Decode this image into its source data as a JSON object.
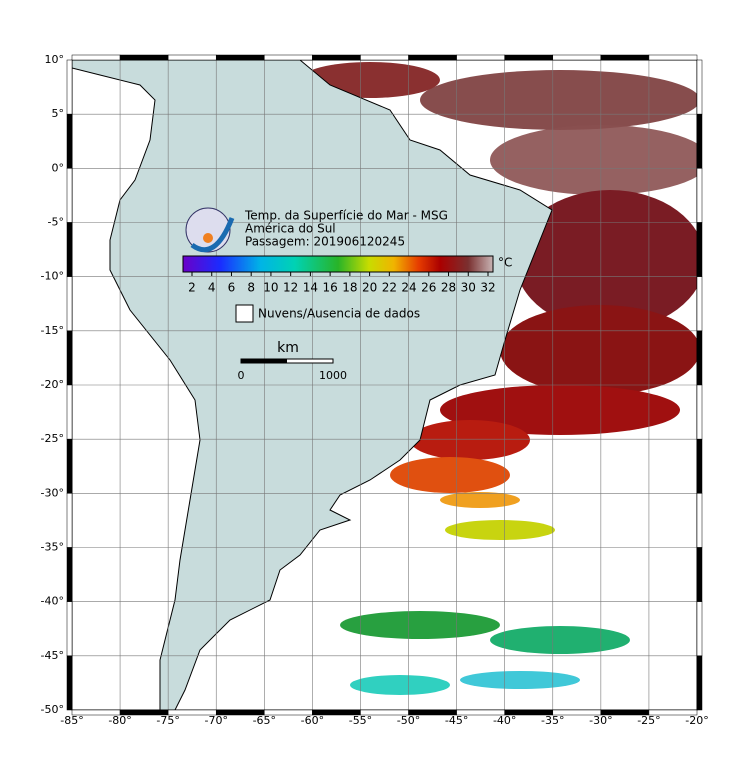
{
  "map": {
    "title_lines": [
      "Temp. da Superfície do Mar - MSG",
      "América do Sul",
      "Passagem: 201906120245"
    ],
    "lon_ticks": [
      {
        "value": -85,
        "label": "-85°"
      },
      {
        "value": -80,
        "label": "-80°"
      },
      {
        "value": -75,
        "label": "-75°"
      },
      {
        "value": -70,
        "label": "-70°"
      },
      {
        "value": -65,
        "label": "-65°"
      },
      {
        "value": -60,
        "label": "-60°"
      },
      {
        "value": -55,
        "label": "-55°"
      },
      {
        "value": -50,
        "label": "-50°"
      },
      {
        "value": -45,
        "label": "-45°"
      },
      {
        "value": -40,
        "label": "-40°"
      },
      {
        "value": -35,
        "label": "-35°"
      },
      {
        "value": -30,
        "label": "-30°"
      },
      {
        "value": -25,
        "label": "-25°"
      },
      {
        "value": -20,
        "label": "-20°"
      }
    ],
    "lat_ticks": [
      {
        "value": 10,
        "label": "10°"
      },
      {
        "value": 5,
        "label": "5°"
      },
      {
        "value": 0,
        "label": "0°"
      },
      {
        "value": -5,
        "label": "-5°"
      },
      {
        "value": -10,
        "label": "-10°"
      },
      {
        "value": -15,
        "label": "-15°"
      },
      {
        "value": -20,
        "label": "-20°"
      },
      {
        "value": -25,
        "label": "-25°"
      },
      {
        "value": -30,
        "label": "-30°"
      },
      {
        "value": -35,
        "label": "-35°"
      },
      {
        "value": -40,
        "label": "-40°"
      },
      {
        "value": -45,
        "label": "-45°"
      },
      {
        "value": -50,
        "label": "-50°"
      }
    ],
    "colorbar": {
      "ticks": [
        2,
        4,
        6,
        8,
        10,
        12,
        14,
        16,
        18,
        20,
        22,
        24,
        26,
        28,
        30,
        32
      ],
      "unit": "°C"
    },
    "cloud_legend": "Nuvens/Ausencia de dados",
    "scale_bar": {
      "unit": "km",
      "start": "0",
      "end": "1000"
    }
  }
}
